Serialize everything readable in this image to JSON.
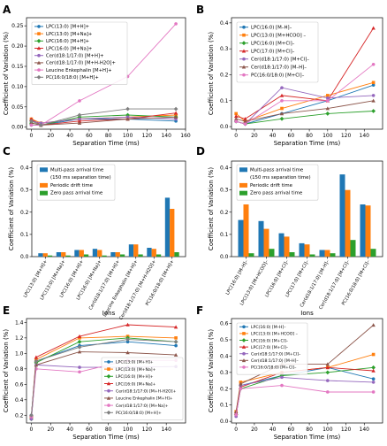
{
  "panels": [
    "A",
    "B",
    "C",
    "D",
    "E",
    "F"
  ],
  "colors": [
    "#1f77b4",
    "#ff7f0e",
    "#2ca02c",
    "#d62728",
    "#9467bd",
    "#8c564b",
    "#e377c2",
    "#7f7f7f",
    "#bcbd22"
  ],
  "chart_data": [
    {
      "panel": "A",
      "type": "line",
      "xlabel": "Separation Time (ms)",
      "ylabel": "Coefficient of Variation (%)",
      "xlim": [
        -5,
        160
      ],
      "ylim": [
        -0.005,
        0.27
      ],
      "xticks": [
        "0",
        "20",
        "40",
        "60",
        "80",
        "100",
        "120",
        "140",
        "160"
      ],
      "yticks": [
        "0.00",
        "0.05",
        "0.10",
        "0.15",
        "0.20",
        "0.25"
      ],
      "x": [
        0,
        10,
        50,
        100,
        150
      ],
      "legend": "upper-left",
      "series": [
        {
          "name": "LPC(13:0) [M+H]+",
          "values": [
            0.005,
            0.005,
            0.02,
            0.02,
            0.015
          ]
        },
        {
          "name": "LPC(13:0) [M+Na]+",
          "values": [
            0.02,
            0.01,
            0.02,
            0.025,
            0.03
          ]
        },
        {
          "name": "LPC(16:0) [M+H]+",
          "values": [
            0.01,
            0.005,
            0.025,
            0.03,
            0.025
          ]
        },
        {
          "name": "LPC(16:0) [M+Na]+",
          "values": [
            0.02,
            0.005,
            0.015,
            0.02,
            0.035
          ]
        },
        {
          "name": "Cer(d18:1/17:0) [M+H]+",
          "values": [
            0.015,
            0.01,
            0.02,
            0.025,
            0.02
          ]
        },
        {
          "name": "Cer(d18:1/17:0) [M+H-H2O]+",
          "values": [
            0.01,
            0.005,
            0.01,
            0.02,
            0.025
          ]
        },
        {
          "name": "Leucine Enkephalin [M+H]+",
          "values": [
            0.005,
            0.005,
            0.065,
            0.125,
            0.255
          ]
        },
        {
          "name": "PC(16:0/18:0) [M+H]+",
          "values": [
            0.015,
            0.005,
            0.03,
            0.045,
            0.045
          ]
        }
      ]
    },
    {
      "panel": "B",
      "type": "line",
      "xlabel": "Separation Time (ms)",
      "ylabel": "Coefficient of Variation (%)",
      "xlim": [
        -5,
        160
      ],
      "ylim": [
        -0.01,
        0.42
      ],
      "xticks": [
        "0",
        "20",
        "40",
        "60",
        "80",
        "100",
        "120",
        "140"
      ],
      "yticks": [
        "0.0",
        "0.1",
        "0.2",
        "0.3",
        "0.4"
      ],
      "x": [
        0,
        10,
        50,
        100,
        150
      ],
      "legend": "upper-left",
      "series": [
        {
          "name": "LPC(16:0) [M–H]–",
          "values": [
            0.02,
            0.01,
            0.05,
            0.1,
            0.16
          ]
        },
        {
          "name": "LPC(13:0) [M+HCOO] –",
          "values": [
            0.05,
            0.02,
            0.07,
            0.12,
            0.17
          ]
        },
        {
          "name": "LPC(16:0) [M+Cl]–",
          "values": [
            0.02,
            0.01,
            0.03,
            0.05,
            0.06
          ]
        },
        {
          "name": "LPC(17:0) [M+Cl]–",
          "values": [
            0.04,
            0.03,
            0.12,
            0.1,
            0.38
          ]
        },
        {
          "name": "Cer(d18:1/17:0) [M+Cl]–",
          "values": [
            0.02,
            0.01,
            0.15,
            0.11,
            0.12
          ]
        },
        {
          "name": "Cer(d18:1/17:0) [M–H]–",
          "values": [
            0.03,
            0.02,
            0.05,
            0.07,
            0.1
          ]
        },
        {
          "name": "PC(16:0/18:0) [M+Cl]–",
          "values": [
            0.02,
            0.01,
            0.1,
            0.1,
            0.24
          ]
        }
      ]
    },
    {
      "panel": "C",
      "type": "bar",
      "xlabel": "Ions",
      "ylabel": "Coefficient of Variation (%)",
      "ylim": [
        0,
        0.43
      ],
      "yticks": [
        "0.0",
        "0.1",
        "0.2",
        "0.3",
        "0.4"
      ],
      "legend": "upper-left",
      "categories": [
        "LPC(13:0) [M+H]+",
        "LPC(13:0) [M+Na]+",
        "LPC(16:0) [M+H]+",
        "LPC(16:0) [M+Na]+",
        "Cer(d18:1/17:0) [M+H]+",
        "Leucine Enkephalin [M+H]+",
        "Cer(d18:1/17:0) [M+H-H2O]+",
        "PC(16:0/18:0) [M+H]+"
      ],
      "series": [
        {
          "name": "Multi-pass arrival time\n(150 ms separation time)",
          "values": [
            0.015,
            0.02,
            0.03,
            0.035,
            0.02,
            0.055,
            0.04,
            0.265
          ]
        },
        {
          "name": "Periodic drift time",
          "values": [
            0.015,
            0.02,
            0.03,
            0.03,
            0.02,
            0.055,
            0.035,
            0.215
          ]
        },
        {
          "name": "Zero pass arrival time",
          "values": [
            0.005,
            0.005,
            0.01,
            0.005,
            0.01,
            0.01,
            0.01,
            0.02
          ]
        }
      ]
    },
    {
      "panel": "D",
      "type": "bar",
      "xlabel": "Ions",
      "ylabel": "Coefficient of Variation (%)",
      "ylim": [
        0,
        0.43
      ],
      "yticks": [
        "0.0",
        "0.1",
        "0.2",
        "0.3",
        "0.4"
      ],
      "legend": "upper-left",
      "categories": [
        "LPC(16:0) [M–H]–",
        "LPC(13:0) [M+HCOO]–",
        "LPC(16:0) [M+Cl]–",
        "LPC(17:0) [M+Cl]–",
        "Cer(d18:1/17:0) [M–H]–",
        "Cer(d18:1/17:0) [M+Cl]–",
        "PC(16:0/18:0) [M+Cl]–"
      ],
      "series": [
        {
          "name": "Multi-pass arrival time\n(150 ms separation time)",
          "values": [
            0.165,
            0.16,
            0.105,
            0.06,
            0.03,
            0.37,
            0.235
          ]
        },
        {
          "name": "Periodic drift time",
          "values": [
            0.235,
            0.125,
            0.09,
            0.055,
            0.03,
            0.3,
            0.23
          ]
        },
        {
          "name": "Zero pass arrival time",
          "values": [
            0.015,
            0.035,
            0.02,
            0.01,
            0.015,
            0.075,
            0.035
          ]
        }
      ]
    },
    {
      "panel": "E",
      "type": "line",
      "xlabel": "Separation Time (ms)",
      "ylabel": "Coefficient of Variation (%)",
      "xlim": [
        -5,
        160
      ],
      "ylim": [
        0.1,
        1.45
      ],
      "xticks": [
        "0",
        "20",
        "40",
        "60",
        "80",
        "100",
        "120",
        "140"
      ],
      "yticks": [
        "0.2",
        "0.4",
        "0.6",
        "0.8",
        "1.0",
        "1.2",
        "1.4"
      ],
      "x": [
        0,
        5,
        50,
        100,
        150
      ],
      "legend": "lower-right",
      "series": [
        {
          "name": "LPC(13:0) [M+H]+",
          "values": [
            0.2,
            0.9,
            1.1,
            1.15,
            1.1
          ]
        },
        {
          "name": "LPC(13:0) [M+Na]+",
          "values": [
            0.18,
            0.92,
            1.2,
            1.22,
            1.2
          ]
        },
        {
          "name": "LPC(16:0) [M+H]+",
          "values": [
            0.15,
            0.88,
            1.15,
            1.2,
            1.15
          ]
        },
        {
          "name": "LPC(16:0) [M+Na]+",
          "values": [
            0.19,
            0.95,
            1.22,
            1.37,
            1.34
          ]
        },
        {
          "name": "Cer(d18:1/17:0) [M+H-H2O]+",
          "values": [
            0.15,
            0.85,
            0.82,
            0.82,
            0.83
          ]
        },
        {
          "name": "Leucine Enkephalin [M+H]+",
          "values": [
            0.2,
            0.85,
            1.02,
            1.01,
            0.98
          ]
        },
        {
          "name": "Cer(d18:1/17:0) [M+Na]+",
          "values": [
            0.18,
            0.8,
            0.76,
            0.91,
            0.91
          ]
        },
        {
          "name": "PC(16:0/18:0) [M+H]+",
          "values": [
            0.2,
            0.9,
            1.08,
            1.18,
            1.15
          ]
        }
      ]
    },
    {
      "panel": "F",
      "type": "line",
      "xlabel": "Separation Time (ms)",
      "ylabel": "Coefficient of Variation (%)",
      "xlim": [
        -5,
        160
      ],
      "ylim": [
        -0.01,
        0.63
      ],
      "xticks": [
        "0",
        "20",
        "40",
        "60",
        "80",
        "100",
        "120",
        "140"
      ],
      "yticks": [
        "0.0",
        "0.1",
        "0.2",
        "0.3",
        "0.4",
        "0.5",
        "0.6"
      ],
      "x": [
        0,
        5,
        50,
        100,
        150
      ],
      "legend": "upper-left",
      "series": [
        {
          "name": "LPC(16:0) [M–H]–",
          "values": [
            0.05,
            0.22,
            0.28,
            0.33,
            0.26
          ]
        },
        {
          "name": "LPC(13:0) [M+HCOO] –",
          "values": [
            0.06,
            0.24,
            0.3,
            0.33,
            0.41
          ]
        },
        {
          "name": "LPC(16:0) [M+Cl]–",
          "values": [
            0.04,
            0.2,
            0.28,
            0.3,
            0.33
          ]
        },
        {
          "name": "LPC(17:0) [M+Cl]–",
          "values": [
            0.05,
            0.21,
            0.3,
            0.33,
            0.31
          ]
        },
        {
          "name": "Cer(d18:1/17:0) [M+Cl]–",
          "values": [
            0.03,
            0.22,
            0.27,
            0.25,
            0.24
          ]
        },
        {
          "name": "Cer(d18:1/17:0) [M–H]–",
          "values": [
            0.06,
            0.23,
            0.35,
            0.35,
            0.59
          ]
        },
        {
          "name": "PC(16:0/18:0) [M+Cl]–",
          "values": [
            0.04,
            0.2,
            0.22,
            0.18,
            0.18
          ]
        }
      ]
    }
  ]
}
